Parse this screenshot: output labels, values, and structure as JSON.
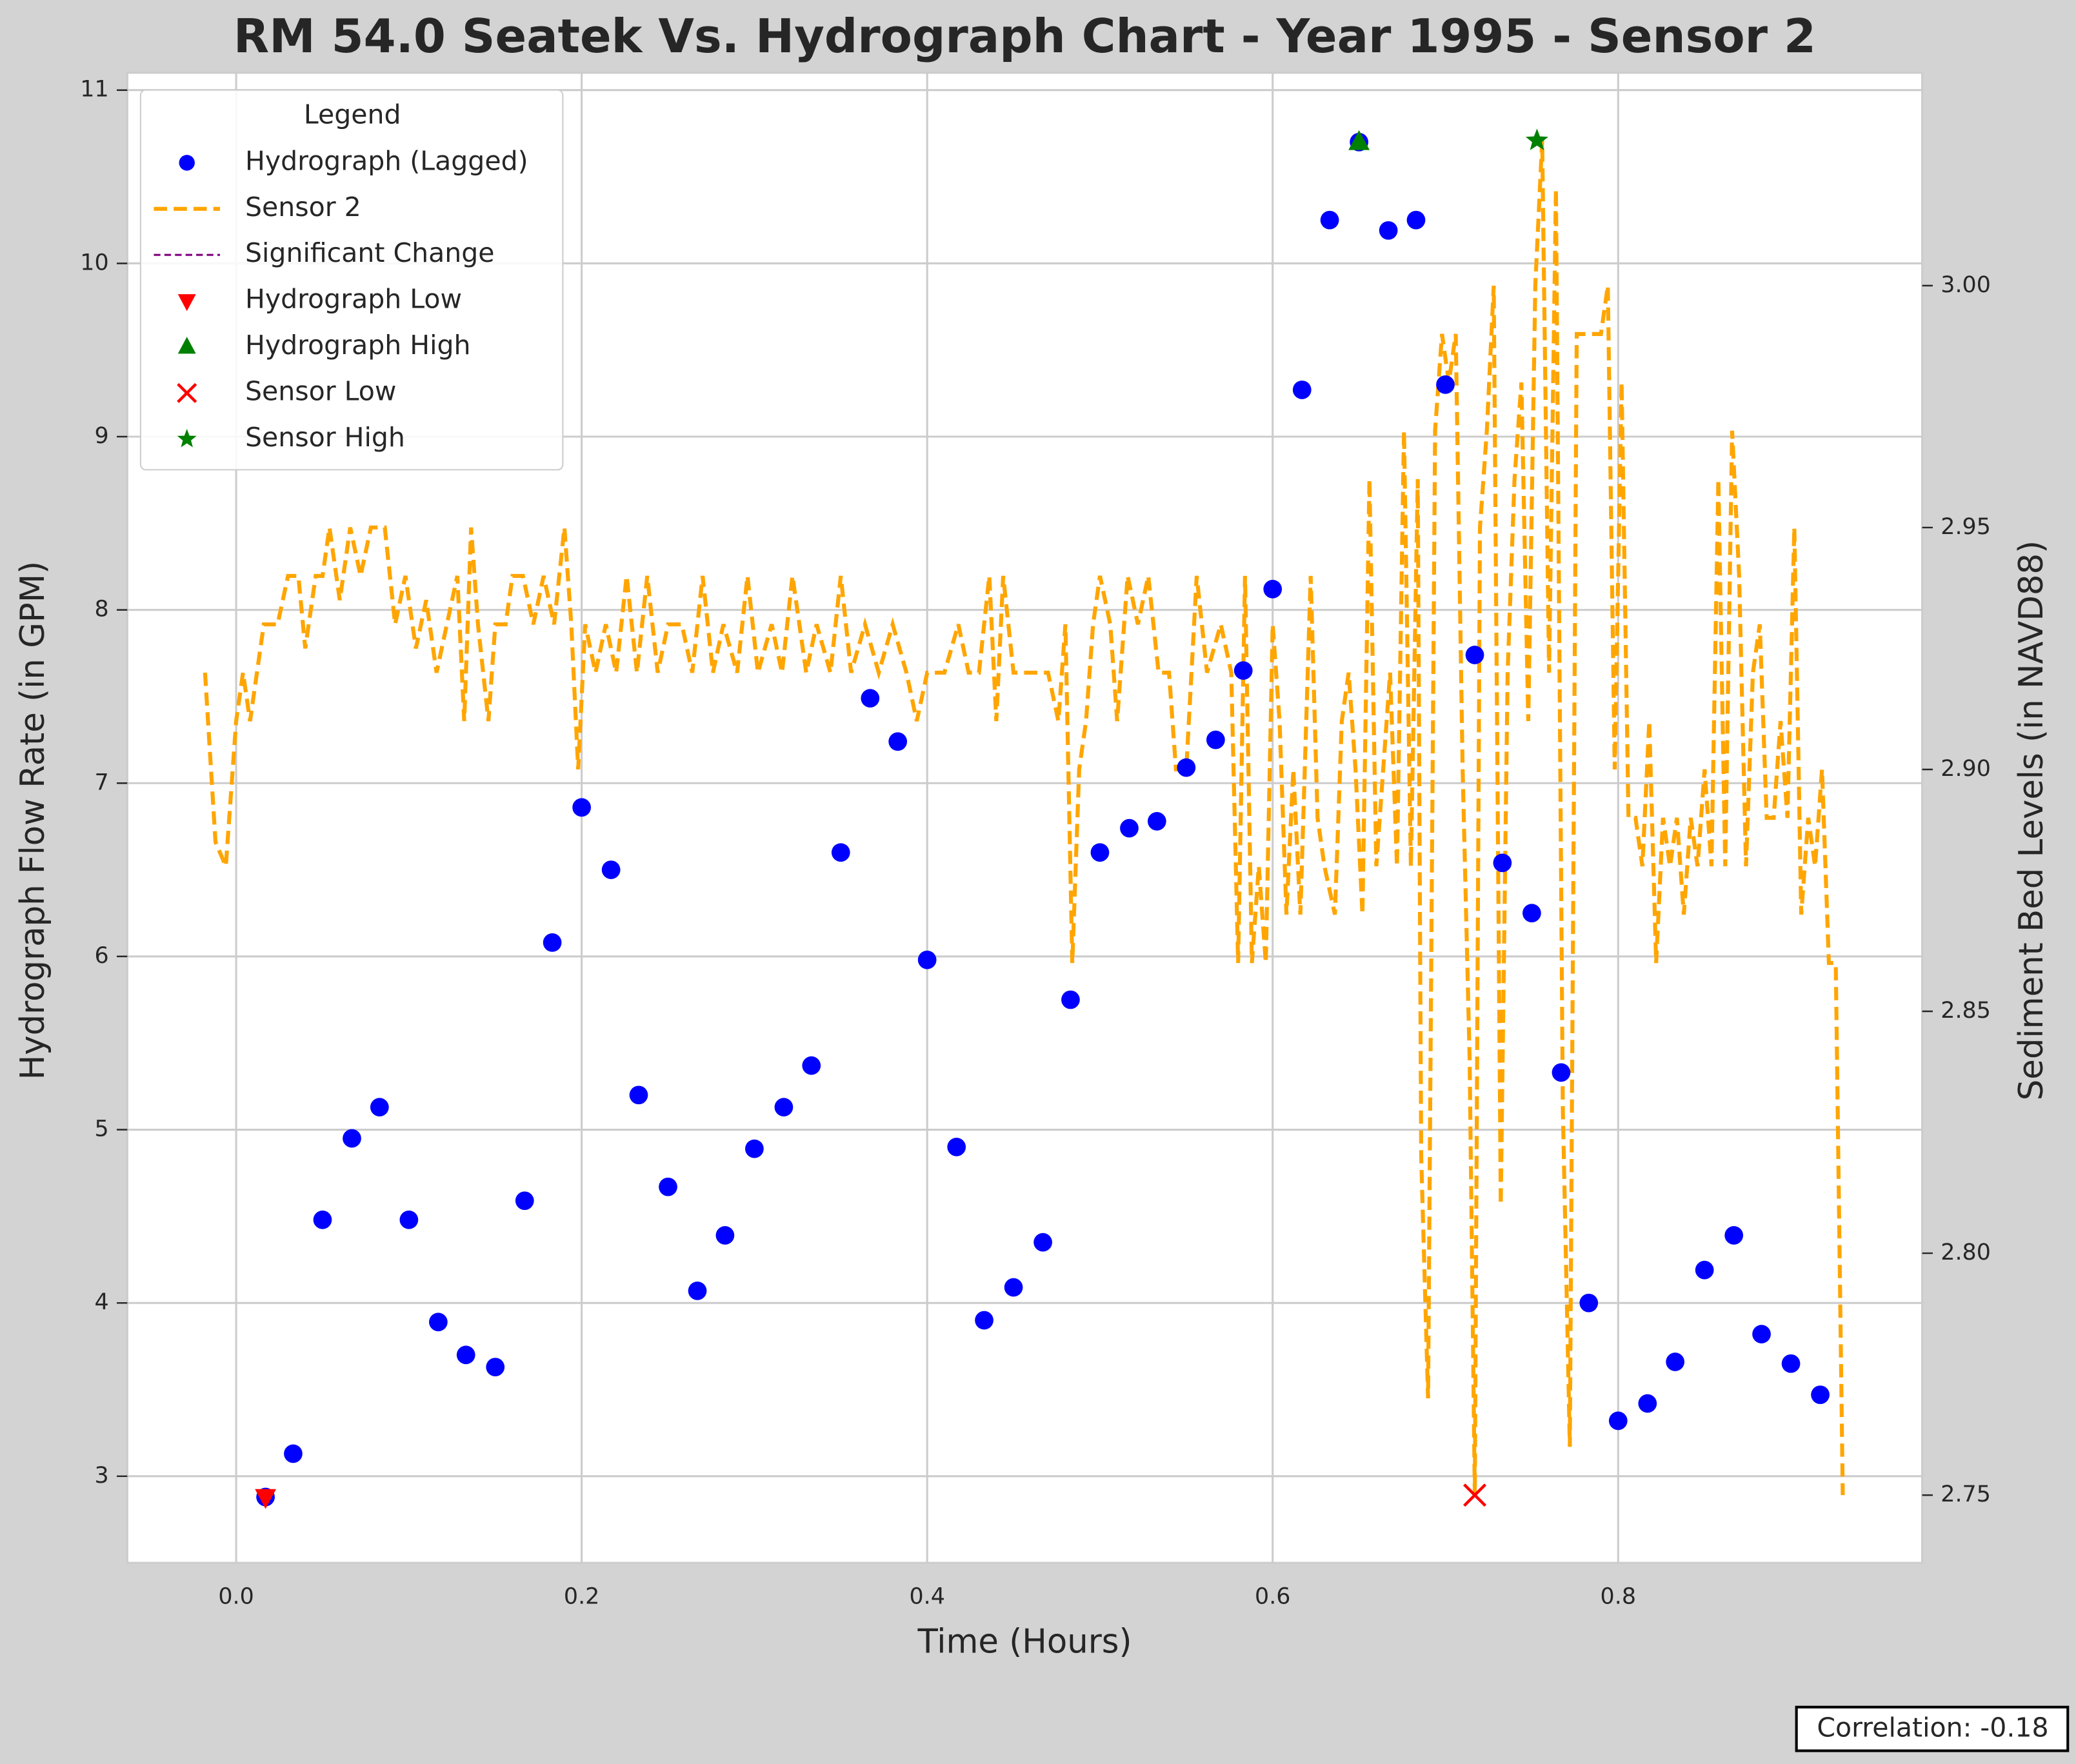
{
  "chart_data": {
    "type": "scatter",
    "title": "RM 54.0 Seatek Vs. Hydrograph Chart - Year 1995 - Sensor 2",
    "x_label": "Time (Hours)",
    "y_label": "Hydrograph Flow Rate (in GPM)",
    "y2_label": "Sediment Bed Levels (in NAVD88)",
    "annotation": "Correlation: -0.18",
    "legend_title": "Legend",
    "legend_position": "upper left",
    "grid": true,
    "xlim": [
      -0.063,
      0.976
    ],
    "xticks": [
      {
        "value": 0,
        "label": "0.0"
      },
      0.2,
      0.4,
      0.6,
      0.8
    ],
    "ylim": [
      2.5,
      11.1
    ],
    "yticks": [
      3,
      4,
      5,
      6,
      7,
      8,
      9,
      10,
      11
    ],
    "y2lim": [
      2.736,
      3.044
    ],
    "y2ticks": [
      2.75,
      {
        "value": 2.8,
        "label": "2.80"
      },
      2.85,
      {
        "value": 2.9,
        "label": "2.90"
      },
      2.95,
      {
        "value": 3,
        "label": "3.00"
      }
    ],
    "series": [
      {
        "name": "Hydrograph (Lagged)",
        "color": "#0000ff",
        "marker": "o",
        "x": [
          0.017,
          0.033,
          0.05,
          0.067,
          0.083,
          0.1,
          0.117,
          0.133,
          0.15,
          0.167,
          0.183,
          0.2,
          0.217,
          0.233,
          0.25,
          0.267,
          0.283,
          0.3,
          0.317,
          0.333,
          0.35,
          0.367,
          0.383,
          0.4,
          0.417,
          0.433,
          0.45,
          0.467,
          0.483,
          0.5,
          0.517,
          0.533,
          0.55,
          0.567,
          0.583,
          0.6,
          0.617,
          0.633,
          0.65,
          0.667,
          0.683,
          0.7,
          0.717,
          0.733,
          0.75,
          0.767,
          0.783,
          0.8,
          0.817,
          0.833,
          0.85,
          0.867,
          0.883,
          0.9,
          0.917
        ],
        "values": [
          2.88,
          3.13,
          4.48,
          4.95,
          5.13,
          4.48,
          3.89,
          3.7,
          3.63,
          4.59,
          6.08,
          6.86,
          6.5,
          5.2,
          4.67,
          4.07,
          4.39,
          4.89,
          5.13,
          5.37,
          6.6,
          7.49,
          7.24,
          5.98,
          4.9,
          3.9,
          4.09,
          4.35,
          5.75,
          6.6,
          6.74,
          6.78,
          7.09,
          7.25,
          7.65,
          8.12,
          9.27,
          10.25,
          10.7,
          10.19,
          10.25,
          9.3,
          7.74,
          6.54,
          6.25,
          5.33,
          4.0,
          3.32,
          3.42,
          3.66,
          4.19,
          4.39,
          3.82,
          3.65,
          3.47
        ]
      },
      {
        "name": "Sensor 2",
        "color": "#ffa500",
        "marker": "line",
        "linestyle": "dashed",
        "axis": "y2",
        "x": [
          -0.018,
          -0.012,
          -0.006,
          0.0,
          0.004,
          0.008,
          0.016,
          0.024,
          0.03,
          0.036,
          0.04,
          0.046,
          0.05,
          0.054,
          0.06,
          0.066,
          0.072,
          0.078,
          0.086,
          0.092,
          0.098,
          0.104,
          0.11,
          0.116,
          0.122,
          0.128,
          0.132,
          0.136,
          0.14,
          0.146,
          0.15,
          0.156,
          0.16,
          0.166,
          0.172,
          0.178,
          0.184,
          0.19,
          0.194,
          0.198,
          0.202,
          0.208,
          0.214,
          0.22,
          0.226,
          0.232,
          0.238,
          0.244,
          0.25,
          0.258,
          0.264,
          0.27,
          0.276,
          0.282,
          0.29,
          0.296,
          0.302,
          0.31,
          0.316,
          0.322,
          0.33,
          0.336,
          0.344,
          0.35,
          0.356,
          0.364,
          0.372,
          0.38,
          0.388,
          0.394,
          0.4,
          0.41,
          0.418,
          0.424,
          0.43,
          0.436,
          0.44,
          0.444,
          0.45,
          0.46,
          0.47,
          0.476,
          0.48,
          0.484,
          0.488,
          0.492,
          0.496,
          0.5,
          0.506,
          0.51,
          0.516,
          0.522,
          0.528,
          0.534,
          0.54,
          0.544,
          0.55,
          0.556,
          0.562,
          0.57,
          0.576,
          0.58,
          0.584,
          0.588,
          0.592,
          0.596,
          0.6,
          0.604,
          0.608,
          0.612,
          0.616,
          0.622,
          0.626,
          0.63,
          0.636,
          0.64,
          0.644,
          0.648,
          0.652,
          0.656,
          0.66,
          0.664,
          0.668,
          0.672,
          0.676,
          0.68,
          0.684,
          0.686,
          0.69,
          0.694,
          0.698,
          0.702,
          0.706,
          0.71,
          0.714,
          0.717,
          0.72,
          0.724,
          0.728,
          0.732,
          0.736,
          0.74,
          0.744,
          0.748,
          0.752,
          0.756,
          0.76,
          0.764,
          0.768,
          0.772,
          0.776,
          0.78,
          0.786,
          0.79,
          0.794,
          0.798,
          0.802,
          0.806,
          0.81,
          0.814,
          0.818,
          0.822,
          0.826,
          0.83,
          0.834,
          0.838,
          0.842,
          0.846,
          0.85,
          0.854,
          0.858,
          0.862,
          0.866,
          0.87,
          0.874,
          0.878,
          0.882,
          0.886,
          0.89,
          0.894,
          0.898,
          0.902,
          0.906,
          0.91,
          0.914,
          0.918,
          0.922,
          0.926,
          0.93
        ],
        "values": [
          2.92,
          2.885,
          2.88,
          2.91,
          2.92,
          2.91,
          2.93,
          2.93,
          2.94,
          2.94,
          2.925,
          2.94,
          2.94,
          2.95,
          2.935,
          2.95,
          2.94,
          2.95,
          2.95,
          2.93,
          2.94,
          2.925,
          2.935,
          2.92,
          2.93,
          2.94,
          2.91,
          2.95,
          2.93,
          2.91,
          2.93,
          2.93,
          2.94,
          2.94,
          2.93,
          2.94,
          2.93,
          2.95,
          2.93,
          2.9,
          2.93,
          2.92,
          2.93,
          2.92,
          2.94,
          2.92,
          2.94,
          2.92,
          2.93,
          2.93,
          2.92,
          2.94,
          2.92,
          2.93,
          2.92,
          2.94,
          2.92,
          2.93,
          2.92,
          2.94,
          2.92,
          2.93,
          2.92,
          2.94,
          2.92,
          2.93,
          2.92,
          2.93,
          2.92,
          2.91,
          2.92,
          2.92,
          2.93,
          2.92,
          2.92,
          2.94,
          2.91,
          2.94,
          2.92,
          2.92,
          2.92,
          2.91,
          2.93,
          2.86,
          2.9,
          2.91,
          2.93,
          2.94,
          2.93,
          2.91,
          2.94,
          2.93,
          2.94,
          2.92,
          2.92,
          2.9,
          2.9,
          2.94,
          2.92,
          2.93,
          2.92,
          2.86,
          2.94,
          2.86,
          2.88,
          2.86,
          2.93,
          2.91,
          2.87,
          2.9,
          2.87,
          2.94,
          2.89,
          2.88,
          2.87,
          2.91,
          2.92,
          2.9,
          2.87,
          2.96,
          2.88,
          2.9,
          2.92,
          2.88,
          2.97,
          2.88,
          2.96,
          2.82,
          2.77,
          2.97,
          2.99,
          2.98,
          2.99,
          2.9,
          2.84,
          2.75,
          2.95,
          2.97,
          3.0,
          2.81,
          2.92,
          2.96,
          2.98,
          2.91,
          3.0,
          3.03,
          2.92,
          3.02,
          2.83,
          2.76,
          2.99,
          2.99,
          2.99,
          2.99,
          3.0,
          2.9,
          2.98,
          2.89,
          2.89,
          2.88,
          2.91,
          2.86,
          2.89,
          2.88,
          2.89,
          2.87,
          2.89,
          2.88,
          2.9,
          2.88,
          2.96,
          2.88,
          2.97,
          2.94,
          2.88,
          2.92,
          2.93,
          2.89,
          2.89,
          2.91,
          2.89,
          2.95,
          2.87,
          2.89,
          2.88,
          2.9,
          2.86,
          2.86,
          2.75
        ]
      },
      {
        "name": "Significant Change",
        "color": "#800080",
        "marker": "line",
        "linestyle": "thin-dashed",
        "x": [],
        "values": []
      },
      {
        "name": "Hydrograph Low",
        "color": "#ff0000",
        "marker": "v",
        "x": [
          0.017
        ],
        "values": [
          2.88
        ]
      },
      {
        "name": "Hydrograph High",
        "color": "#008000",
        "marker": "^",
        "x": [
          0.65
        ],
        "values": [
          10.7
        ]
      },
      {
        "name": "Sensor Low",
        "color": "#ff0000",
        "marker": "x",
        "axis": "y2",
        "x": [
          0.717
        ],
        "values": [
          2.75
        ]
      },
      {
        "name": "Sensor High",
        "color": "#008000",
        "marker": "*",
        "axis": "y2",
        "x": [
          0.753
        ],
        "values": [
          3.03
        ]
      }
    ]
  }
}
